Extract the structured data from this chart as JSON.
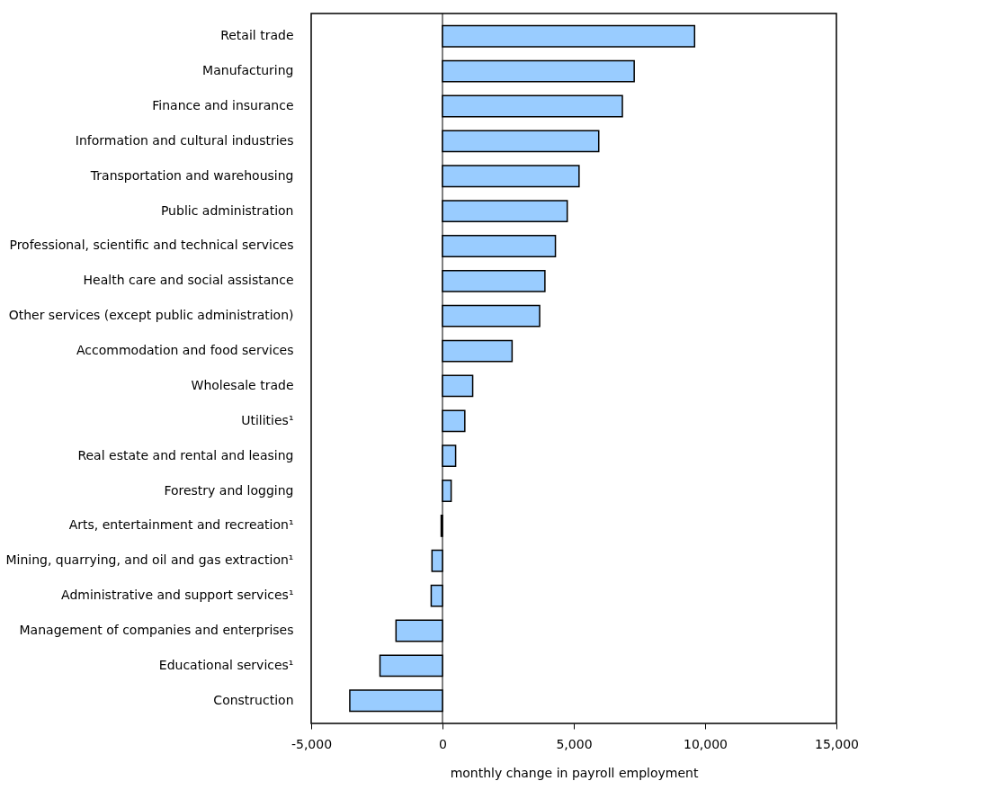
{
  "chart_data": {
    "type": "bar",
    "orientation": "horizontal",
    "xlabel": "monthly change in payroll employment",
    "categories": [
      "Retail trade",
      "Manufacturing",
      "Finance and insurance",
      "Information and cultural industries",
      "Transportation and warehousing",
      "Public administration",
      "Professional, scientific and technical services",
      "Health care and social assistance",
      "Other services (except public administration)",
      "Accommodation and food services",
      "Wholesale trade",
      "Utilities¹",
      "Real estate and rental and leasing",
      "Forestry and logging",
      "Arts, entertainment and recreation¹",
      "Mining, quarrying, and oil and gas extraction¹",
      "Administrative and support services¹",
      "Management of companies and enterprises",
      "Educational services¹",
      "Construction"
    ],
    "values": [
      9600,
      7300,
      6850,
      5950,
      5200,
      4750,
      4300,
      3900,
      3700,
      2650,
      1150,
      850,
      500,
      330,
      -50,
      -400,
      -430,
      -1770,
      -2380,
      -3530
    ],
    "color": "#99ccff",
    "xlim": [
      -5000,
      15000
    ],
    "xticks": [
      {
        "value": -5000,
        "label": "-5,000"
      },
      0,
      {
        "value": 5000,
        "label": "5,000"
      },
      {
        "value": 10000,
        "label": "10,000"
      },
      {
        "value": 15000,
        "label": "15,000"
      }
    ],
    "ref_lines": [
      {
        "axis": "x",
        "value": 0,
        "color": "#000000"
      }
    ]
  }
}
